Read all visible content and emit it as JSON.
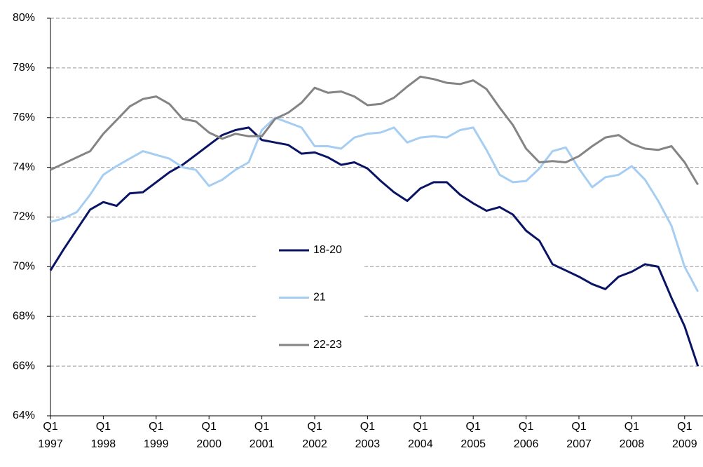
{
  "chart_data": {
    "type": "line",
    "categories": [
      "Q1\n1997",
      null,
      null,
      null,
      "Q1\n1998",
      null,
      null,
      null,
      "Q1\n1999",
      null,
      null,
      null,
      "Q1\n2000",
      null,
      null,
      null,
      "Q1\n2001",
      null,
      null,
      null,
      "Q1\n2002",
      null,
      null,
      null,
      "Q1\n2003",
      null,
      null,
      null,
      "Q1\n2004",
      null,
      null,
      null,
      "Q1\n2005",
      null,
      null,
      null,
      "Q1\n2006",
      null,
      null,
      null,
      "Q1\n2007",
      null,
      null,
      null,
      "Q1\n2008",
      null,
      null,
      null,
      "Q1\n2009",
      null
    ],
    "series": [
      {
        "name": "18-20",
        "color": "#0a1464",
        "values": [
          69.85,
          70.7,
          71.5,
          72.3,
          72.6,
          72.45,
          72.95,
          73.0,
          73.4,
          73.8,
          74.1,
          74.5,
          74.9,
          75.3,
          75.5,
          75.6,
          75.1,
          75.0,
          74.9,
          74.55,
          74.6,
          74.4,
          74.1,
          74.2,
          73.95,
          73.45,
          73.0,
          72.65,
          73.15,
          73.4,
          73.4,
          72.9,
          72.55,
          72.25,
          72.4,
          72.1,
          71.45,
          71.05,
          70.1,
          69.85,
          69.6,
          69.3,
          69.1,
          69.6,
          69.8,
          70.1,
          70.0,
          68.75,
          67.6,
          66.0
        ]
      },
      {
        "name": "21",
        "color": "#a6cdf2",
        "values": [
          71.8,
          71.95,
          72.2,
          72.9,
          73.7,
          74.05,
          74.35,
          74.65,
          74.5,
          74.35,
          74.0,
          73.9,
          73.25,
          73.5,
          73.9,
          74.2,
          75.5,
          76.0,
          75.8,
          75.6,
          74.85,
          74.85,
          74.75,
          75.2,
          75.35,
          75.4,
          75.6,
          75.0,
          75.2,
          75.25,
          75.2,
          75.5,
          75.6,
          74.7,
          73.7,
          73.4,
          73.45,
          73.95,
          74.65,
          74.8,
          73.95,
          73.2,
          73.6,
          73.7,
          74.05,
          73.5,
          72.65,
          71.65,
          70.0,
          69.0
        ]
      },
      {
        "name": "22-23",
        "color": "#848484",
        "values": [
          73.9,
          74.15,
          74.4,
          74.65,
          75.35,
          75.9,
          76.45,
          76.75,
          76.85,
          76.55,
          75.95,
          75.85,
          75.4,
          75.15,
          75.35,
          75.25,
          75.25,
          75.95,
          76.2,
          76.6,
          77.2,
          77.0,
          77.05,
          76.85,
          76.5,
          76.55,
          76.8,
          77.25,
          77.65,
          77.55,
          77.4,
          77.35,
          77.5,
          77.15,
          76.4,
          75.7,
          74.75,
          74.2,
          74.25,
          74.2,
          74.45,
          74.85,
          75.2,
          75.3,
          74.95,
          74.75,
          74.7,
          74.85,
          74.2,
          73.3
        ]
      }
    ],
    "ylim": [
      64,
      80
    ],
    "yticks": [
      {
        "value": 64,
        "label": "64%"
      },
      {
        "value": 66,
        "label": "66%"
      },
      {
        "value": 68,
        "label": "68%"
      },
      {
        "value": 70,
        "label": "70%"
      },
      {
        "value": 72,
        "label": "72%"
      },
      {
        "value": 74,
        "label": "74%"
      },
      {
        "value": 76,
        "label": "76%"
      },
      {
        "value": 78,
        "label": "78%"
      },
      {
        "value": 80,
        "label": "80%"
      }
    ],
    "grid": true
  }
}
